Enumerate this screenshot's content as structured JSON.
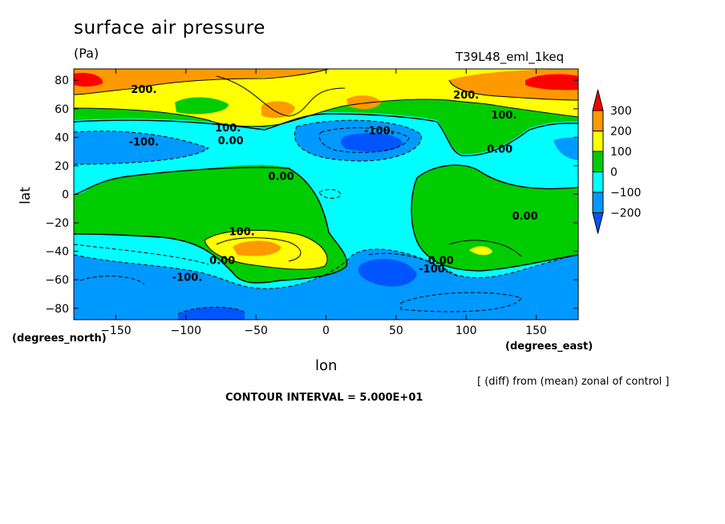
{
  "header": {
    "title": "surface air pressure",
    "units": "(Pa)",
    "run_label": "T39L48_eml_1keq"
  },
  "axes": {
    "x_name": "lon",
    "y_name": "lat",
    "x_units": "(degrees_east)",
    "y_units": "(degrees_north)"
  },
  "footer": {
    "note": "[ (diff) from (mean) zonal of control ]",
    "contour_interval": "CONTOUR INTERVAL = 5.000E+01"
  },
  "chart_data": {
    "type": "heatmap",
    "title": "surface air pressure",
    "subtitle": "(Pa)",
    "xlabel": "lon",
    "ylabel": "lat",
    "xlim": [
      -180,
      180
    ],
    "ylim": [
      -88,
      88
    ],
    "x_ticks": [
      -150,
      -100,
      -50,
      0,
      50,
      100,
      150
    ],
    "y_ticks": [
      80,
      60,
      40,
      20,
      0,
      -20,
      -40,
      -60,
      -80
    ],
    "x_tick_labels": [
      "−150",
      "−100",
      "−50",
      "0",
      "50",
      "100",
      "150"
    ],
    "y_tick_labels": [
      "80",
      "60",
      "40",
      "20",
      "0",
      "−20",
      "−40",
      "−60",
      "−80"
    ],
    "legend": {
      "placement": "right",
      "colors": [
        "#0055ff",
        "#0099ff",
        "#00ffff",
        "#00cc00",
        "#ffff00",
        "#ff9900",
        "#ff0000"
      ],
      "labels": [
        "−200",
        "−100",
        "0",
        "100",
        "200",
        "300"
      ]
    },
    "contour_labels": [
      {
        "text": "200.",
        "lon": -130,
        "lat": 74
      },
      {
        "text": "200.",
        "lon": 100,
        "lat": 70
      },
      {
        "text": "100.",
        "lon": -70,
        "lat": 47
      },
      {
        "text": "0.00",
        "lon": -68,
        "lat": 38
      },
      {
        "text": "-100.",
        "lon": -130,
        "lat": 37
      },
      {
        "text": "-100.",
        "lon": 38,
        "lat": 45
      },
      {
        "text": "100.",
        "lon": 127,
        "lat": 56
      },
      {
        "text": "0.00",
        "lon": 124,
        "lat": 32
      },
      {
        "text": "0.00",
        "lon": -32,
        "lat": 13
      },
      {
        "text": "0.00",
        "lon": 142,
        "lat": -15
      },
      {
        "text": "100.",
        "lon": -60,
        "lat": -26
      },
      {
        "text": "0.00",
        "lon": -74,
        "lat": -46
      },
      {
        "text": "-100.",
        "lon": -99,
        "lat": -58
      },
      {
        "text": "0.00",
        "lon": 82,
        "lat": -46
      },
      {
        "text": "-100.",
        "lon": 77,
        "lat": -52
      }
    ]
  }
}
